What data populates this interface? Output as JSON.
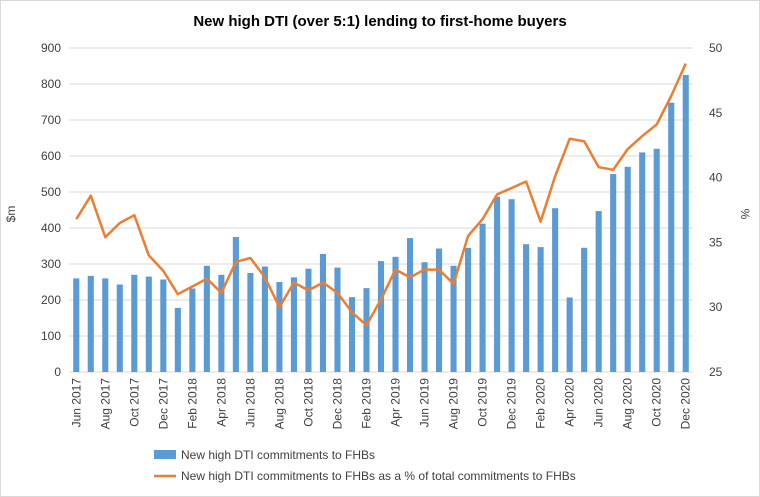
{
  "colors": {
    "bars": "#5b9bd5",
    "line": "#ed7d31",
    "grid": "#d9d9d9",
    "text": "#404040"
  },
  "chart_data": {
    "type": "bar+line",
    "title": "New high DTI (over 5:1) lending to first-home buyers",
    "ylabel_left": "$m",
    "ylabel_right": "%",
    "ylim_left": [
      0,
      900
    ],
    "ylim_right": [
      25,
      50
    ],
    "yticks_left": [
      "0",
      "100",
      "200",
      "300",
      "400",
      "500",
      "600",
      "700",
      "800",
      "900"
    ],
    "yticks_right": [
      "25",
      "30",
      "35",
      "40",
      "45",
      "50"
    ],
    "grid": true,
    "legend_position": "bottom",
    "categories": [
      "Jun 2017",
      "Jul 2017",
      "Aug 2017",
      "Sep 2017",
      "Oct 2017",
      "Nov 2017",
      "Dec 2017",
      "Jan 2018",
      "Feb 2018",
      "Mar 2018",
      "Apr 2018",
      "May 2018",
      "Jun 2018",
      "Jul 2018",
      "Aug 2018",
      "Sep 2018",
      "Oct 2018",
      "Nov 2018",
      "Dec 2018",
      "Jan 2019",
      "Feb 2019",
      "Mar 2019",
      "Apr 2019",
      "May 2019",
      "Jun 2019",
      "Jul 2019",
      "Aug 2019",
      "Sep 2019",
      "Oct 2019",
      "Nov 2019",
      "Dec 2019",
      "Jan 2020",
      "Feb 2020",
      "Mar 2020",
      "Apr 2020",
      "May 2020",
      "Jun 2020",
      "Jul 2020",
      "Aug 2020",
      "Sep 2020",
      "Oct 2020",
      "Nov 2020",
      "Dec 2020"
    ],
    "tick_labels": [
      "Jun 2017",
      "Aug 2017",
      "Oct 2017",
      "Dec 2017",
      "Feb 2018",
      "Apr 2018",
      "Jun 2018",
      "Aug 2018",
      "Oct 2018",
      "Dec 2018",
      "Feb 2019",
      "Apr 2019",
      "Jun 2019",
      "Aug 2019",
      "Oct 2019",
      "Dec 2019",
      "Feb 2020",
      "Apr 2020",
      "Jun 2020",
      "Aug 2020",
      "Oct 2020",
      "Dec 2020"
    ],
    "series": [
      {
        "name": "New high DTI commitments to FHBs",
        "type": "bar",
        "axis": "left",
        "values": [
          260,
          267,
          260,
          243,
          270,
          265,
          257,
          178,
          232,
          295,
          270,
          375,
          275,
          293,
          250,
          263,
          287,
          328,
          290,
          208,
          233,
          308,
          320,
          372,
          305,
          343,
          295,
          345,
          412,
          487,
          480,
          355,
          347,
          455,
          207,
          345,
          447,
          550,
          570,
          610,
          620,
          748,
          825
        ]
      },
      {
        "name": "New high DTI commitments to FHBs as a % of total commitments to FHBs",
        "type": "line",
        "axis": "right",
        "values": [
          36.8,
          38.6,
          35.4,
          36.5,
          37.1,
          34.0,
          32.8,
          31.0,
          31.6,
          32.2,
          31.1,
          33.5,
          33.8,
          32.3,
          30.0,
          31.9,
          31.3,
          31.9,
          31.1,
          29.6,
          28.6,
          30.6,
          32.9,
          32.3,
          32.9,
          32.9,
          31.8,
          35.5,
          36.8,
          38.7,
          39.2,
          39.7,
          36.6,
          40.1,
          43.0,
          42.8,
          40.8,
          40.6,
          42.2,
          43.2,
          44.1,
          46.3,
          48.8
        ]
      }
    ]
  }
}
